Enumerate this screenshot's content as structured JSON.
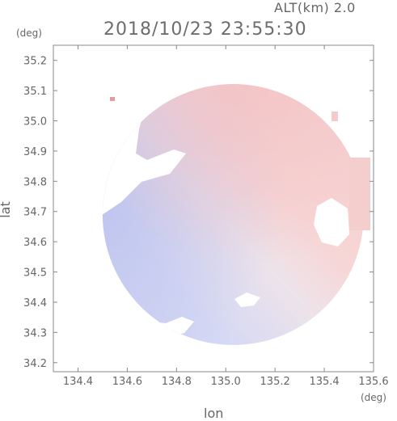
{
  "header": {
    "altitude_label": "ALT(km) 2.0",
    "timestamp": "2018/10/23 23:55:30"
  },
  "chart_data": {
    "type": "heatmap",
    "title": "2018/10/23 23:55:30",
    "subtitle": "ALT(km) 2.0",
    "xlabel": "lon",
    "ylabel": "lat",
    "x_unit": "(deg)",
    "y_unit": "(deg)",
    "xlim": [
      134.3,
      135.6
    ],
    "ylim": [
      34.17,
      35.25
    ],
    "x_ticks": [
      {
        "value": 134.4,
        "label": "134.4"
      },
      {
        "value": 134.6,
        "label": "134.6"
      },
      {
        "value": 134.8,
        "label": "134.8"
      },
      {
        "value": 135.0,
        "label": "135.0"
      },
      {
        "value": 135.2,
        "label": "135.2"
      },
      {
        "value": 135.4,
        "label": "135.4"
      },
      {
        "value": 135.6,
        "label": "135.6"
      }
    ],
    "y_ticks": [
      {
        "value": 34.2,
        "label": "34.2"
      },
      {
        "value": 34.3,
        "label": "34.3"
      },
      {
        "value": 34.4,
        "label": "34.4"
      },
      {
        "value": 34.5,
        "label": "34.5"
      },
      {
        "value": 34.6,
        "label": "34.6"
      },
      {
        "value": 34.7,
        "label": "34.7"
      },
      {
        "value": 34.8,
        "label": "34.8"
      },
      {
        "value": 34.9,
        "label": "34.9"
      },
      {
        "value": 35.0,
        "label": "35.0"
      },
      {
        "value": 35.1,
        "label": "35.1"
      },
      {
        "value": 35.2,
        "label": "35.2"
      }
    ],
    "grid": false,
    "colors": {
      "approaching": "#c8cdf2",
      "receding": "#f6cfd0",
      "frame": "#888888"
    },
    "radar_coverage": {
      "center_lon": 135.03,
      "center_lat": 34.69,
      "radius_deg": 0.53
    }
  }
}
